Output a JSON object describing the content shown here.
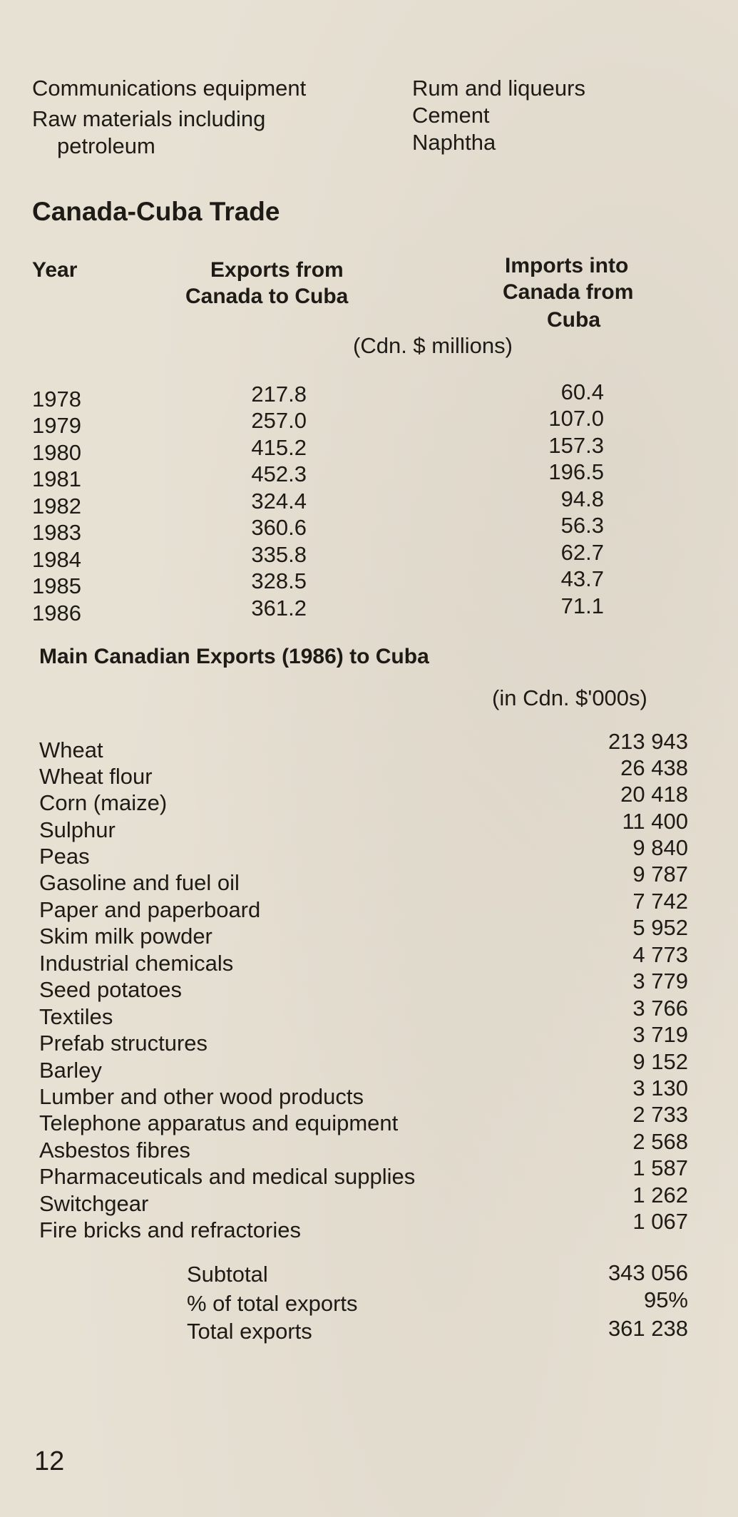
{
  "top_list": {
    "left": [
      "Communications equipment",
      "Raw materials including",
      "petroleum"
    ],
    "right": [
      "Rum and liqueurs",
      "Cement",
      "Naphtha"
    ]
  },
  "trade": {
    "title": "Canada-Cuba Trade",
    "col_year": "Year",
    "col_exports": [
      "Exports from",
      "Canada to Cuba"
    ],
    "col_imports": [
      "Imports into",
      "Canada from",
      "Cuba"
    ],
    "units": "(Cdn. $ millions)",
    "rows": [
      {
        "year": "1978",
        "exports": "217.8",
        "imports": "60.4"
      },
      {
        "year": "1979",
        "exports": "257.0",
        "imports": "107.0"
      },
      {
        "year": "1980",
        "exports": "415.2",
        "imports": "157.3"
      },
      {
        "year": "1981",
        "exports": "452.3",
        "imports": "196.5"
      },
      {
        "year": "1982",
        "exports": "324.4",
        "imports": "94.8"
      },
      {
        "year": "1983",
        "exports": "360.6",
        "imports": "56.3"
      },
      {
        "year": "1984",
        "exports": "335.8",
        "imports": "62.7"
      },
      {
        "year": "1985",
        "exports": "328.5",
        "imports": "43.7"
      },
      {
        "year": "1986",
        "exports": "361.2",
        "imports": "71.1"
      }
    ]
  },
  "exports": {
    "title": "Main Canadian Exports (1986) to Cuba",
    "units": "(in Cdn. $'000s)",
    "items": [
      {
        "name": "Wheat",
        "value": "213 943"
      },
      {
        "name": "Wheat flour",
        "value": "26 438"
      },
      {
        "name": "Corn (maize)",
        "value": "20 418"
      },
      {
        "name": "Sulphur",
        "value": "11 400"
      },
      {
        "name": "Peas",
        "value": "9 840"
      },
      {
        "name": "Gasoline and fuel oil",
        "value": "9 787"
      },
      {
        "name": "Paper and paperboard",
        "value": "7 742"
      },
      {
        "name": "Skim milk powder",
        "value": "5 952"
      },
      {
        "name": "Industrial chemicals",
        "value": "4 773"
      },
      {
        "name": "Seed potatoes",
        "value": "3 779"
      },
      {
        "name": "Textiles",
        "value": "3 766"
      },
      {
        "name": "Prefab structures",
        "value": "3 719"
      },
      {
        "name": "Barley",
        "value": "9 152"
      },
      {
        "name": "Lumber and other wood products",
        "value": "3 130"
      },
      {
        "name": "Telephone apparatus and equipment",
        "value": "2 733"
      },
      {
        "name": "Asbestos fibres",
        "value": "2 568"
      },
      {
        "name": "Pharmaceuticals and medical supplies",
        "value": "1 587"
      },
      {
        "name": "Switchgear",
        "value": "1 262"
      },
      {
        "name": "Fire bricks and refractories",
        "value": "1 067"
      }
    ],
    "totals": [
      {
        "label": "Subtotal",
        "value": "343 056"
      },
      {
        "label": "% of total exports",
        "value": "95%"
      },
      {
        "label": "Total exports",
        "value": "361 238"
      }
    ]
  },
  "page_number": "12"
}
